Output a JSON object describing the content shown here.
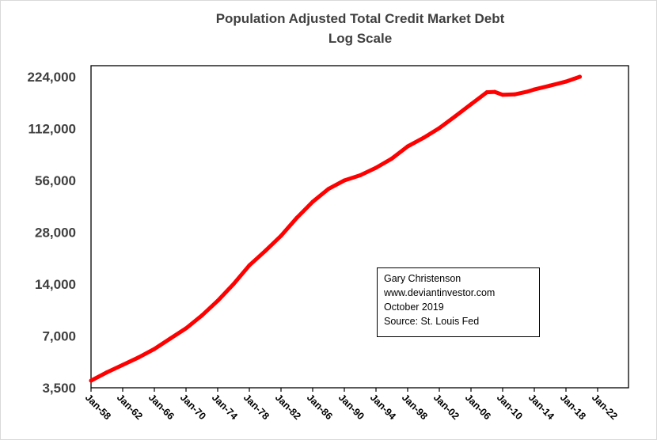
{
  "chart_data": {
    "type": "line",
    "title": "Population Adjusted Total Credit Market Debt",
    "subtitle": "Log Scale",
    "xlabel": "",
    "ylabel": "",
    "y_scale": "log2",
    "ylim": [
      3500,
      224000
    ],
    "y_ticks": [
      "3,500",
      "7,000",
      "14,000",
      "28,000",
      "56,000",
      "112,000",
      "224,000"
    ],
    "y_tick_values": [
      3500,
      7000,
      14000,
      28000,
      56000,
      112000,
      224000
    ],
    "xlim": [
      1958,
      2026
    ],
    "x_ticks": [
      "Jan-58",
      "Jan-62",
      "Jan-66",
      "Jan-70",
      "Jan-74",
      "Jan-78",
      "Jan-82",
      "Jan-86",
      "Jan-90",
      "Jan-94",
      "Jan-98",
      "Jan-02",
      "Jan-06",
      "Jan-10",
      "Jan-14",
      "Jan-18",
      "Jan-22"
    ],
    "x_tick_values": [
      1958,
      1962,
      1966,
      1970,
      1974,
      1978,
      1982,
      1986,
      1990,
      1994,
      1998,
      2002,
      2006,
      2010,
      2014,
      2018,
      2022
    ],
    "grid": false,
    "legend": "none",
    "line_color": "#ff0000",
    "series": [
      {
        "x": [
          1958,
          1960,
          1962,
          1964,
          1966,
          1968,
          1970,
          1972,
          1974,
          1976,
          1978,
          1980,
          1982,
          1984,
          1986,
          1988,
          1990,
          1992,
          1994,
          1996,
          1998,
          2000,
          2002,
          2004,
          2006,
          2008,
          2009,
          2010,
          2011.5,
          2013,
          2014,
          2016,
          2018,
          2019,
          2019.75
        ],
        "y": [
          3850,
          4300,
          4750,
          5250,
          5880,
          6750,
          7750,
          9200,
          11200,
          14000,
          18000,
          21800,
          26700,
          34000,
          42100,
          50000,
          56000,
          60000,
          66300,
          75000,
          88300,
          99000,
          112700,
          132000,
          155000,
          182000,
          183000,
          176000,
          177000,
          183000,
          189000,
          199000,
          210000,
          218000,
          224000
        ]
      }
    ]
  },
  "annotation": {
    "lines": [
      "Gary Christenson",
      "www.deviantinvestor.com",
      "October 2019",
      "Source: St. Louis Fed"
    ]
  }
}
